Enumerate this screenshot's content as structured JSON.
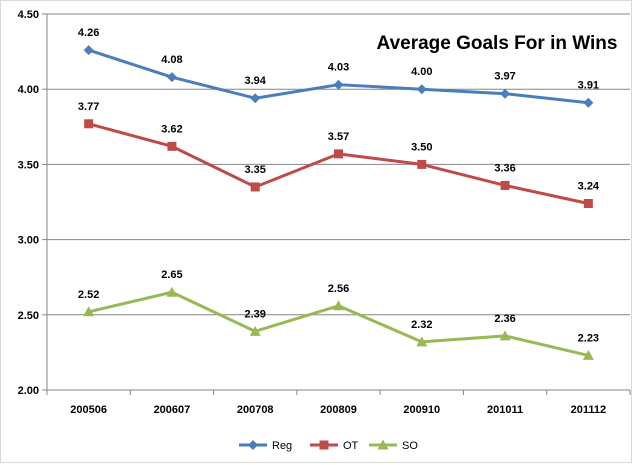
{
  "chart_data": {
    "type": "line",
    "title": "Average Goals For in Wins",
    "categories": [
      "200506",
      "200607",
      "200708",
      "200809",
      "200910",
      "201011",
      "201112"
    ],
    "ylim": [
      2.0,
      4.5
    ],
    "y_ticks": [
      "2.00",
      "2.50",
      "3.00",
      "3.50",
      "4.00",
      "4.50"
    ],
    "grid": "horizontal",
    "legend_position": "bottom",
    "series": [
      {
        "name": "Reg",
        "color": "#4a7ebb",
        "marker": "diamond",
        "values": [
          4.26,
          4.08,
          3.94,
          4.03,
          4.0,
          3.97,
          3.91
        ],
        "labels": [
          "4.26",
          "4.08",
          "3.94",
          "4.03",
          "4.00",
          "3.97",
          "3.91"
        ]
      },
      {
        "name": "OT",
        "color": "#be4b48",
        "marker": "square",
        "values": [
          3.77,
          3.62,
          3.35,
          3.57,
          3.5,
          3.36,
          3.24
        ],
        "labels": [
          "3.77",
          "3.62",
          "3.35",
          "3.57",
          "3.50",
          "3.36",
          "3.24"
        ]
      },
      {
        "name": "SO",
        "color": "#98b954",
        "marker": "triangle",
        "values": [
          2.52,
          2.65,
          2.39,
          2.56,
          2.32,
          2.36,
          2.23
        ],
        "labels": [
          "2.52",
          "2.65",
          "2.39",
          "2.56",
          "2.32",
          "2.36",
          "2.23"
        ]
      }
    ]
  }
}
